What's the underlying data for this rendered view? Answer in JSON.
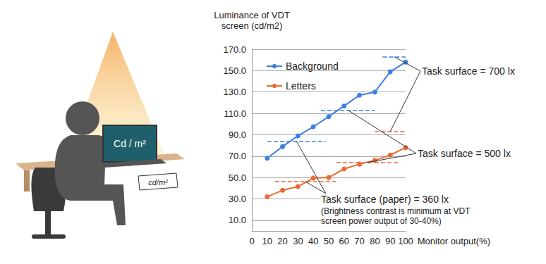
{
  "chart_data": {
    "type": "line",
    "x_label": "Monitor output(%)",
    "y_label": "Luminance of VDT\nscreen (cd/m2)",
    "x": [
      10,
      20,
      30,
      40,
      50,
      60,
      70,
      80,
      90,
      100
    ],
    "series": [
      {
        "name": "Background",
        "color": "#3d7fe0",
        "marker": "circle",
        "values": [
          68,
          79,
          89,
          97.5,
          107,
          117,
          127,
          130,
          149,
          158
        ]
      },
      {
        "name": "Letters",
        "color": "#eb6a35",
        "marker": "circle",
        "values": [
          32,
          38,
          41.5,
          49.5,
          50,
          58,
          62.5,
          66,
          71,
          78
        ]
      }
    ],
    "xlim": [
      0,
      100
    ],
    "xticks": [
      0,
      10,
      20,
      30,
      40,
      50,
      60,
      70,
      80,
      90,
      100
    ],
    "ylim": [
      0,
      170
    ],
    "yticks": [
      {
        "value": 10,
        "label": "10.0"
      },
      {
        "value": 30,
        "label": "30.0"
      },
      {
        "value": 50,
        "label": "50.0"
      },
      {
        "value": 70,
        "label": "70.0"
      },
      {
        "value": 90,
        "label": "90.0"
      },
      {
        "value": 110,
        "label": "110.0"
      },
      {
        "value": 130,
        "label": "130.0"
      },
      {
        "value": 150,
        "label": "150.0"
      },
      {
        "value": 170,
        "label": "170.0"
      }
    ],
    "grid": true,
    "legend": "upper left",
    "annotations": [
      {
        "text": "Task surface = 700 lx",
        "levels": [
          {
            "series": "Background",
            "value": 163,
            "x": [
              85,
              100
            ]
          },
          {
            "series": "Letters",
            "value": 93,
            "x": [
              80,
              100
            ]
          }
        ]
      },
      {
        "text": "Task surface = 500 lx",
        "levels": [
          {
            "series": "Background",
            "value": 113,
            "x": [
              45,
              80
            ]
          },
          {
            "series": "Letters",
            "value": 64,
            "x": [
              55,
              95
            ]
          }
        ]
      },
      {
        "text": "Task surface (paper) = 360 lx",
        "note": "(Brightness contrast is minimum at VDT\nscreen power output of 30-40%)",
        "levels": [
          {
            "series": "Background",
            "value": 84,
            "x": [
              10,
              48
            ]
          },
          {
            "series": "Letters",
            "value": 46,
            "x": [
              15,
              55
            ]
          }
        ]
      }
    ]
  },
  "illustration": {
    "screen_text": "Cd / m²",
    "paper_text": "cd/m²"
  }
}
